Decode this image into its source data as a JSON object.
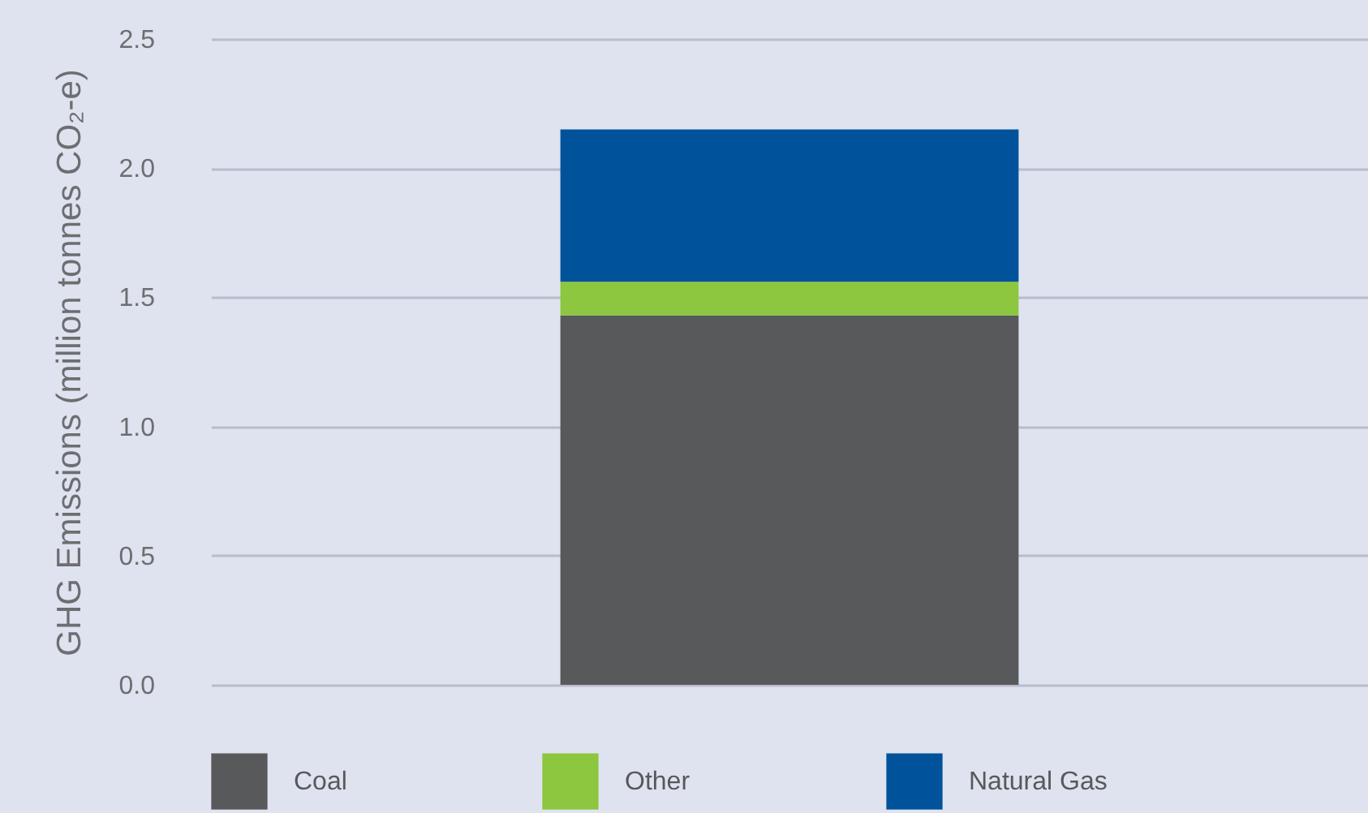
{
  "chart_data": {
    "type": "bar",
    "ylabel": "GHG Emissions (million tonnes CO₂-e)",
    "categories": [
      null
    ],
    "stacked": true,
    "series": [
      {
        "name": "Coal",
        "color": "#58595b",
        "values": [
          1.43
        ]
      },
      {
        "name": "Other",
        "color": "#8dc63f",
        "values": [
          0.13
        ]
      },
      {
        "name": "Natural Gas",
        "color": "#00539a",
        "values": [
          0.59
        ]
      }
    ],
    "ylim": [
      0,
      2.5
    ],
    "yticks": [
      {
        "value": 0,
        "label": "0.0"
      },
      0.5,
      {
        "value": 1,
        "label": "1.0"
      },
      1.5,
      {
        "value": 2,
        "label": "2.0"
      },
      2.5
    ],
    "grid": "y",
    "legend": "bottom",
    "tick_labels": "y"
  }
}
